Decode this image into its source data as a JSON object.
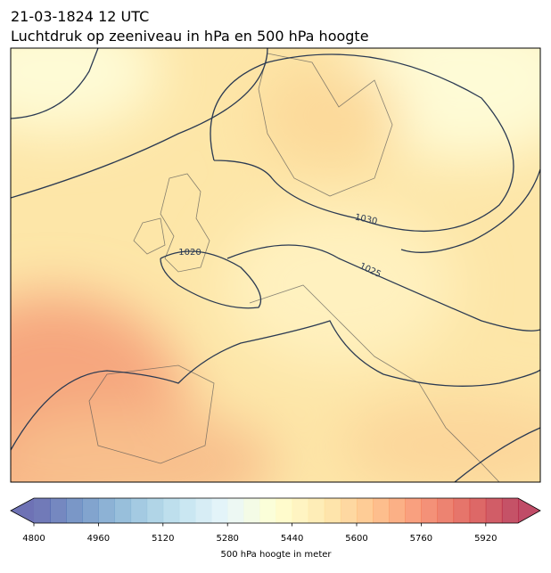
{
  "header": {
    "title": "21-03-1824 12 UTC",
    "subtitle": "Luchtdruk op zeeniveau in hPa en 500 hPa hoogte"
  },
  "map": {
    "contour_labels": [
      "1020",
      "1025",
      "1030"
    ]
  },
  "colorbar": {
    "lim": [
      4800,
      6000
    ],
    "step": 40,
    "ticks": [
      4800,
      4960,
      5120,
      5280,
      5440,
      5600,
      5760,
      5920
    ],
    "label": "500 hPa hoogte in meter"
  }
}
